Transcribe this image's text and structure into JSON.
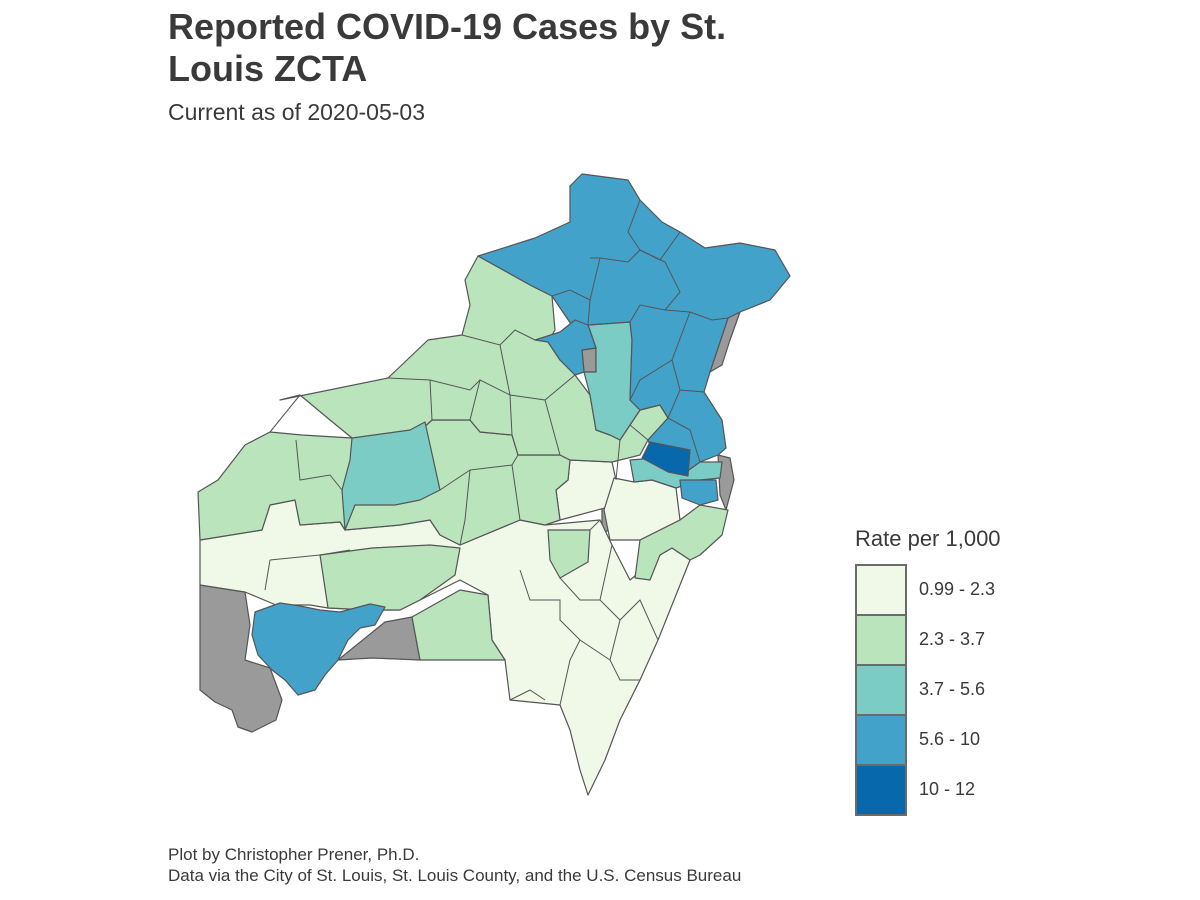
{
  "title": "Reported COVID-19 Cases by St. Louis ZCTA",
  "subtitle": "Current as of 2020-05-03",
  "legend": {
    "title": "Rate per 1,000",
    "classes": [
      {
        "label": "0.99 - 2.3",
        "color": "#f0f9e8"
      },
      {
        "label": "2.3 - 3.7",
        "color": "#bae4bc"
      },
      {
        "label": "3.7 - 5.6",
        "color": "#7bccc4"
      },
      {
        "label": "5.6 - 10",
        "color": "#43a2ca"
      },
      {
        "label": "10 - 12",
        "color": "#0868ac"
      }
    ],
    "no_data_color": "#9a9a9a",
    "border_color": "#555555"
  },
  "caption": {
    "line1": "Plot by Christopher Prener, Ph.D.",
    "line2": "Data via the City of St. Louis, St. Louis County, and the U.S. Census Bureau"
  }
}
